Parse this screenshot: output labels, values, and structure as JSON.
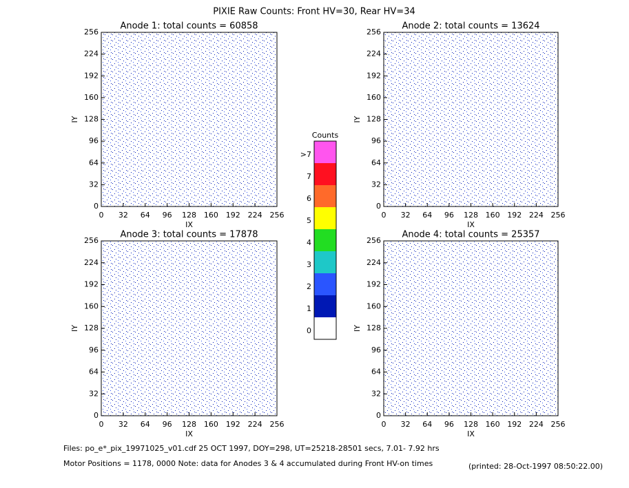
{
  "title": "PIXIE Raw Counts:  Front HV=30, Rear HV=34",
  "panels": [
    {
      "title": "Anode 1: total counts = 60858",
      "xlabel": "IX",
      "ylabel": "IY",
      "xlim": [
        0,
        256
      ],
      "ylim": [
        0,
        256
      ],
      "xticks": [
        0,
        32,
        64,
        96,
        128,
        160,
        192,
        224,
        256
      ],
      "yticks": [
        0,
        32,
        64,
        96,
        128,
        160,
        192,
        224,
        256
      ]
    },
    {
      "title": "Anode 2: total counts = 13624",
      "xlabel": "IX",
      "ylabel": "IY",
      "xlim": [
        0,
        256
      ],
      "ylim": [
        0,
        256
      ],
      "xticks": [
        0,
        32,
        64,
        96,
        128,
        160,
        192,
        224,
        256
      ],
      "yticks": [
        0,
        32,
        64,
        96,
        128,
        160,
        192,
        224,
        256
      ]
    },
    {
      "title": "Anode 3: total counts = 17878",
      "xlabel": "IX",
      "ylabel": "IY",
      "xlim": [
        0,
        256
      ],
      "ylim": [
        0,
        256
      ],
      "xticks": [
        0,
        32,
        64,
        96,
        128,
        160,
        192,
        224,
        256
      ],
      "yticks": [
        0,
        32,
        64,
        96,
        128,
        160,
        192,
        224,
        256
      ]
    },
    {
      "title": "Anode 4: total counts = 25357",
      "xlabel": "IX",
      "ylabel": "IY",
      "xlim": [
        0,
        256
      ],
      "ylim": [
        0,
        256
      ],
      "xticks": [
        0,
        32,
        64,
        96,
        128,
        160,
        192,
        224,
        256
      ],
      "yticks": [
        0,
        32,
        64,
        96,
        128,
        160,
        192,
        224,
        256
      ]
    }
  ],
  "colorbar": {
    "title": "Counts",
    "levels": [
      {
        "label": "0",
        "color": "#ffffff"
      },
      {
        "label": "1",
        "color": "#0018b4"
      },
      {
        "label": "2",
        "color": "#2a55ff"
      },
      {
        "label": "3",
        "color": "#1ec8c8"
      },
      {
        "label": "4",
        "color": "#22dd22"
      },
      {
        "label": "5",
        "color": "#ffff00"
      },
      {
        "label": "6",
        "color": "#ff6a2a"
      },
      {
        "label": "7",
        "color": "#ff1020"
      },
      {
        "label": ">7",
        "color": "#ff55ee"
      }
    ]
  },
  "footer": {
    "files": "Files: po_e*_pix_19971025_v01.cdf    25 OCT 1997, DOY=298, UT=25218-28501 secs,  7.01- 7.92 hrs",
    "motor": "Motor Positions = 1178, 0000    Note: data for Anodes 3 & 4 accumulated during Front HV-on times",
    "printed": "(printed: 28-Oct-1997 08:50:22.00)"
  }
}
